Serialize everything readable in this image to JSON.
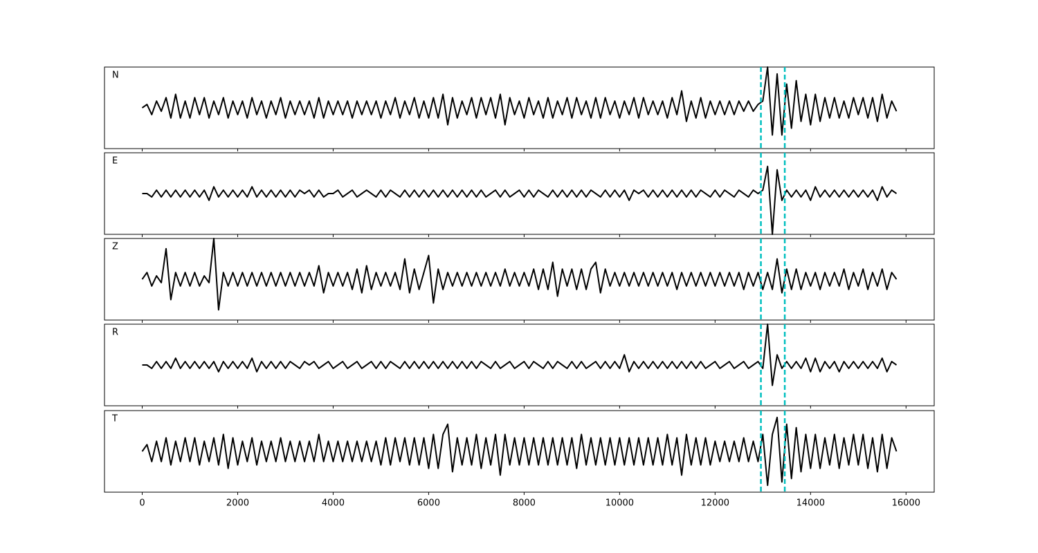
{
  "chart_data": {
    "type": "line",
    "x": [
      0,
      100,
      200,
      300,
      400,
      500,
      600,
      700,
      800,
      900,
      1000,
      1100,
      1200,
      1300,
      1400,
      1500,
      1600,
      1700,
      1800,
      1900,
      2000,
      2100,
      2200,
      2300,
      2400,
      2500,
      2600,
      2700,
      2800,
      2900,
      3000,
      3100,
      3200,
      3300,
      3400,
      3500,
      3600,
      3700,
      3800,
      3900,
      4000,
      4100,
      4200,
      4300,
      4400,
      4500,
      4600,
      4700,
      4800,
      4900,
      5000,
      5100,
      5200,
      5300,
      5400,
      5500,
      5600,
      5700,
      5800,
      5900,
      6000,
      6100,
      6200,
      6300,
      6400,
      6500,
      6600,
      6700,
      6800,
      6900,
      7000,
      7100,
      7200,
      7300,
      7400,
      7500,
      7600,
      7700,
      7800,
      7900,
      8000,
      8100,
      8200,
      8300,
      8400,
      8500,
      8600,
      8700,
      8800,
      8900,
      9000,
      9100,
      9200,
      9300,
      9400,
      9500,
      9600,
      9700,
      9800,
      9900,
      10000,
      10100,
      10200,
      10300,
      10400,
      10500,
      10600,
      10700,
      10800,
      10900,
      11000,
      11100,
      11200,
      11300,
      11400,
      11500,
      11600,
      11700,
      11800,
      11900,
      12000,
      12100,
      12200,
      12300,
      12400,
      12500,
      12600,
      12700,
      12800,
      12900,
      13000,
      13100,
      13200,
      13300,
      13400,
      13500,
      13600,
      13700,
      13800,
      13900,
      14000,
      14100,
      14200,
      14300,
      14400,
      14500,
      14600,
      14700,
      14800,
      14900,
      15000,
      15100,
      15200,
      15300,
      15400,
      15500,
      15600,
      15700,
      15800
    ],
    "series": [
      {
        "name": "N",
        "color": "#000000",
        "values": [
          0,
          0.1,
          -0.2,
          0.2,
          -0.1,
          0.3,
          -0.3,
          0.4,
          -0.3,
          0.2,
          -0.3,
          0.3,
          -0.2,
          0.3,
          -0.3,
          0.2,
          -0.2,
          0.3,
          -0.3,
          0.2,
          -0.2,
          0.2,
          -0.3,
          0.3,
          -0.2,
          0.2,
          -0.3,
          0.2,
          -0.2,
          0.3,
          -0.3,
          0.2,
          -0.2,
          0.2,
          -0.2,
          0.2,
          -0.3,
          0.3,
          -0.3,
          0.2,
          -0.2,
          0.2,
          -0.2,
          0.2,
          -0.3,
          0.2,
          -0.2,
          0.2,
          -0.2,
          0.2,
          -0.3,
          0.2,
          -0.2,
          0.3,
          -0.3,
          0.2,
          -0.2,
          0.3,
          -0.3,
          0.2,
          -0.3,
          0.3,
          -0.3,
          0.4,
          -0.5,
          0.3,
          -0.3,
          0.2,
          -0.2,
          0.3,
          -0.3,
          0.3,
          -0.2,
          0.3,
          -0.3,
          0.4,
          -0.5,
          0.3,
          -0.2,
          0.2,
          -0.3,
          0.3,
          -0.2,
          0.2,
          -0.3,
          0.3,
          -0.3,
          0.2,
          -0.2,
          0.3,
          -0.3,
          0.3,
          -0.2,
          0.2,
          -0.3,
          0.3,
          -0.3,
          0.3,
          -0.2,
          0.2,
          -0.3,
          0.2,
          -0.2,
          0.3,
          -0.3,
          0.3,
          -0.2,
          0.2,
          -0.2,
          0.2,
          -0.3,
          0.3,
          -0.2,
          0.5,
          -0.4,
          0.2,
          -0.3,
          0.3,
          -0.3,
          0.2,
          -0.2,
          0.2,
          -0.2,
          0.2,
          -0.2,
          0.2,
          -0.1,
          0.2,
          -0.1,
          0.1,
          0.2,
          1.2,
          -0.8,
          1.0,
          -0.8,
          0.7,
          -0.6,
          0.8,
          -0.4,
          0.4,
          -0.5,
          0.4,
          -0.4,
          0.3,
          -0.3,
          0.3,
          -0.3,
          0.2,
          -0.3,
          0.3,
          -0.2,
          0.3,
          -0.3,
          0.3,
          -0.4,
          0.4,
          -0.3,
          0.2,
          -0.1
        ]
      },
      {
        "name": "E",
        "color": "#000000",
        "values": [
          0,
          0,
          -0.1,
          0.1,
          -0.1,
          0.1,
          -0.1,
          0.1,
          -0.1,
          0.1,
          -0.1,
          0.1,
          -0.1,
          0.1,
          -0.2,
          0.2,
          -0.1,
          0.1,
          -0.1,
          0.1,
          -0.1,
          0.1,
          -0.1,
          0.2,
          -0.1,
          0.1,
          -0.1,
          0.1,
          -0.1,
          0.1,
          -0.1,
          0.1,
          -0.1,
          0.1,
          0,
          0.1,
          -0.1,
          0.1,
          -0.1,
          0,
          0,
          0.1,
          -0.1,
          0,
          0.1,
          -0.1,
          0,
          0.1,
          0,
          -0.1,
          0.1,
          -0.1,
          0.1,
          0,
          -0.1,
          0.1,
          -0.1,
          0.1,
          -0.1,
          0.1,
          -0.1,
          0.1,
          -0.1,
          0.1,
          -0.1,
          0.1,
          -0.1,
          0.1,
          -0.1,
          0.1,
          -0.1,
          0.1,
          -0.1,
          0,
          0.1,
          -0.1,
          0.1,
          -0.1,
          0,
          0.1,
          -0.1,
          0.1,
          -0.1,
          0.1,
          0,
          -0.1,
          0.1,
          -0.1,
          0.1,
          -0.1,
          0.1,
          -0.1,
          0.1,
          -0.1,
          0.1,
          0,
          -0.1,
          0.1,
          -0.1,
          0.1,
          -0.1,
          0.1,
          -0.2,
          0.1,
          0,
          0.1,
          -0.1,
          0.1,
          -0.1,
          0.1,
          -0.1,
          0.1,
          -0.1,
          0.1,
          -0.1,
          0.1,
          -0.1,
          0.1,
          0,
          -0.1,
          0.1,
          -0.1,
          0.1,
          0,
          -0.1,
          0.1,
          0,
          -0.1,
          0.1,
          0,
          0.1,
          0.8,
          -1.2,
          0.7,
          -0.2,
          0.1,
          -0.1,
          0.1,
          -0.1,
          0.1,
          -0.2,
          0.2,
          -0.1,
          0.1,
          -0.1,
          0.1,
          -0.1,
          0.1,
          -0.1,
          0.1,
          -0.1,
          0.1,
          -0.1,
          0.1,
          -0.2,
          0.2,
          -0.1,
          0.1,
          0
        ]
      },
      {
        "name": "Z",
        "color": "#000000",
        "values": [
          0,
          0.2,
          -0.2,
          0.1,
          -0.1,
          0.9,
          -0.6,
          0.2,
          -0.2,
          0.2,
          -0.2,
          0.2,
          -0.2,
          0.1,
          -0.1,
          1.2,
          -0.9,
          0.2,
          -0.2,
          0.2,
          -0.2,
          0.2,
          -0.2,
          0.2,
          -0.2,
          0.2,
          -0.2,
          0.2,
          -0.2,
          0.2,
          -0.2,
          0.2,
          -0.2,
          0.2,
          -0.2,
          0.2,
          -0.2,
          0.4,
          -0.4,
          0.2,
          -0.2,
          0.2,
          -0.2,
          0.2,
          -0.3,
          0.3,
          -0.4,
          0.4,
          -0.3,
          0.2,
          -0.2,
          0.2,
          -0.2,
          0.2,
          -0.3,
          0.6,
          -0.4,
          0.3,
          -0.3,
          0.2,
          0.7,
          -0.7,
          0.3,
          -0.3,
          0.2,
          -0.2,
          0.2,
          -0.2,
          0.2,
          -0.2,
          0.2,
          -0.2,
          0.2,
          -0.2,
          0.2,
          -0.2,
          0.3,
          -0.2,
          0.2,
          -0.2,
          0.2,
          -0.2,
          0.3,
          -0.3,
          0.3,
          -0.3,
          0.5,
          -0.5,
          0.3,
          -0.2,
          0.3,
          -0.3,
          0.3,
          -0.3,
          0.3,
          0.5,
          -0.4,
          0.3,
          -0.2,
          0.2,
          -0.2,
          0.2,
          -0.2,
          0.2,
          -0.2,
          0.2,
          -0.2,
          0.2,
          -0.2,
          0.2,
          -0.2,
          0.2,
          -0.3,
          0.2,
          -0.2,
          0.2,
          -0.2,
          0.2,
          -0.2,
          0.2,
          -0.2,
          0.2,
          -0.2,
          0.2,
          -0.2,
          0.2,
          -0.3,
          0.2,
          -0.2,
          0.2,
          -0.3,
          0.2,
          -0.3,
          0.6,
          -0.4,
          0.3,
          -0.3,
          0.3,
          -0.3,
          0.2,
          -0.2,
          0.2,
          -0.3,
          0.2,
          -0.2,
          0.2,
          -0.2,
          0.3,
          -0.3,
          0.2,
          -0.2,
          0.3,
          -0.3,
          0.2,
          -0.2,
          0.3,
          -0.3,
          0.2,
          0
        ]
      },
      {
        "name": "R",
        "color": "#000000",
        "values": [
          0,
          0,
          -0.1,
          0.1,
          -0.1,
          0.1,
          -0.1,
          0.2,
          -0.1,
          0.1,
          -0.1,
          0.1,
          -0.1,
          0.1,
          -0.1,
          0.1,
          -0.2,
          0.1,
          -0.1,
          0.1,
          -0.1,
          0.1,
          -0.1,
          0.2,
          -0.2,
          0.1,
          -0.1,
          0.1,
          -0.1,
          0.1,
          -0.1,
          0.1,
          0,
          -0.1,
          0.1,
          0,
          0.1,
          -0.1,
          0,
          0.1,
          -0.1,
          0,
          0.1,
          -0.1,
          0,
          0.1,
          -0.1,
          0,
          0.1,
          -0.1,
          0.1,
          -0.1,
          0.1,
          0,
          -0.1,
          0.1,
          -0.1,
          0.1,
          -0.1,
          0.1,
          -0.1,
          0.1,
          -0.1,
          0.1,
          -0.1,
          0.1,
          -0.1,
          0.1,
          -0.1,
          0.1,
          -0.1,
          0.1,
          0,
          -0.1,
          0.1,
          -0.1,
          0,
          0.1,
          -0.1,
          0,
          0.1,
          -0.1,
          0.1,
          0,
          -0.1,
          0.1,
          -0.1,
          0.1,
          0,
          -0.1,
          0.1,
          -0.1,
          0.1,
          -0.1,
          0,
          0.1,
          -0.1,
          0.1,
          -0.1,
          0.1,
          -0.1,
          0.3,
          -0.2,
          0.1,
          -0.1,
          0.1,
          -0.1,
          0.1,
          -0.1,
          0.1,
          -0.1,
          0.1,
          -0.1,
          0.1,
          -0.1,
          0.1,
          -0.1,
          0.1,
          -0.1,
          0,
          0.1,
          -0.1,
          0,
          0.1,
          -0.1,
          0,
          0.1,
          -0.1,
          0,
          0.1,
          -0.1,
          1.2,
          -0.6,
          0.3,
          -0.1,
          0.1,
          -0.1,
          0.1,
          -0.1,
          0.2,
          -0.2,
          0.2,
          -0.2,
          0.1,
          -0.1,
          0.1,
          -0.2,
          0.1,
          -0.1,
          0.1,
          -0.1,
          0.1,
          -0.1,
          0.1,
          -0.1,
          0.2,
          -0.2,
          0.1,
          0
        ]
      },
      {
        "name": "T",
        "color": "#000000",
        "values": [
          0,
          0.2,
          -0.3,
          0.3,
          -0.3,
          0.4,
          -0.4,
          0.3,
          -0.3,
          0.4,
          -0.3,
          0.4,
          -0.4,
          0.3,
          -0.3,
          0.4,
          -0.4,
          0.5,
          -0.5,
          0.4,
          -0.4,
          0.3,
          -0.3,
          0.4,
          -0.4,
          0.3,
          -0.3,
          0.3,
          -0.3,
          0.4,
          -0.3,
          0.3,
          -0.3,
          0.3,
          -0.3,
          0.3,
          -0.3,
          0.5,
          -0.3,
          0.3,
          -0.3,
          0.3,
          -0.3,
          0.3,
          -0.3,
          0.3,
          -0.3,
          0.3,
          -0.3,
          0.3,
          -0.4,
          0.4,
          -0.4,
          0.4,
          -0.3,
          0.4,
          -0.4,
          0.4,
          -0.4,
          0.4,
          -0.5,
          0.5,
          -0.5,
          0.5,
          0.8,
          -0.6,
          0.4,
          -0.4,
          0.4,
          -0.4,
          0.5,
          -0.5,
          0.4,
          -0.4,
          0.5,
          -0.7,
          0.5,
          -0.4,
          0.4,
          -0.4,
          0.4,
          -0.4,
          0.4,
          -0.4,
          0.4,
          -0.4,
          0.4,
          -0.4,
          0.4,
          -0.4,
          0.4,
          -0.5,
          0.5,
          -0.4,
          0.4,
          -0.4,
          0.4,
          -0.4,
          0.4,
          -0.4,
          0.4,
          -0.4,
          0.4,
          -0.4,
          0.4,
          -0.4,
          0.4,
          -0.4,
          0.4,
          -0.4,
          0.5,
          -0.4,
          0.4,
          -0.7,
          0.5,
          -0.4,
          0.4,
          -0.4,
          0.4,
          -0.4,
          0.3,
          -0.3,
          0.3,
          -0.3,
          0.3,
          -0.3,
          0.4,
          -0.3,
          0.3,
          -0.3,
          0.5,
          -1.0,
          0.5,
          1.0,
          -0.9,
          0.8,
          -0.8,
          0.7,
          -0.6,
          0.5,
          -0.5,
          0.5,
          -0.5,
          0.4,
          -0.4,
          0.5,
          -0.5,
          0.4,
          -0.4,
          0.5,
          -0.4,
          0.5,
          -0.5,
          0.4,
          -0.6,
          0.5,
          -0.5,
          0.4,
          0
        ]
      }
    ],
    "vlines": [
      12960,
      13460
    ],
    "vline_color": "#00bfbf",
    "xlim": [
      -790,
      16590
    ],
    "xticks": [
      0,
      2000,
      4000,
      6000,
      8000,
      10000,
      12000,
      14000,
      16000
    ],
    "ylim": [
      -1.2,
      1.2
    ]
  }
}
